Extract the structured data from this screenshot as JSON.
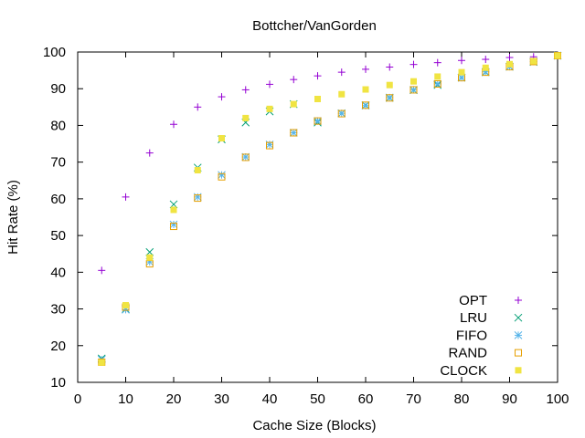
{
  "chart_data": {
    "type": "scatter",
    "title": "Bottcher/VanGorden",
    "xlabel": "Cache Size (Blocks)",
    "ylabel": "Hit Rate (%)",
    "xlim": [
      0,
      100
    ],
    "ylim": [
      10,
      100
    ],
    "xticks": [
      "0",
      "10",
      "20",
      "30",
      "40",
      "50",
      "60",
      "70",
      "80",
      "90",
      "100"
    ],
    "yticks": [
      "10",
      "20",
      "30",
      "40",
      "50",
      "60",
      "70",
      "80",
      "90",
      "100"
    ],
    "grid": false,
    "legend_position": "bottom-right",
    "x": [
      5,
      10,
      15,
      20,
      25,
      30,
      35,
      40,
      45,
      50,
      55,
      60,
      65,
      70,
      75,
      80,
      85,
      90,
      95,
      100
    ],
    "series": [
      {
        "name": "OPT",
        "marker": "plus",
        "color": "#9400d3",
        "values": [
          40.5,
          60.5,
          72.5,
          80.3,
          85.0,
          87.8,
          89.7,
          91.2,
          92.5,
          93.5,
          94.5,
          95.3,
          95.9,
          96.6,
          97.1,
          97.7,
          98.0,
          98.5,
          98.7,
          99.0
        ]
      },
      {
        "name": "LRU",
        "marker": "cross",
        "color": "#009e73",
        "values": [
          16.5,
          30.0,
          45.5,
          58.5,
          68.5,
          76.2,
          80.8,
          83.8,
          85.8,
          80.8,
          83.3,
          85.5,
          87.5,
          89.6,
          91.0,
          93.0,
          94.5,
          96.0,
          97.3,
          99.0
        ]
      },
      {
        "name": "FIFO",
        "marker": "asterisk",
        "color": "#56b4e9",
        "values": [
          16.2,
          29.8,
          42.8,
          53.0,
          60.5,
          66.5,
          71.4,
          74.8,
          78.0,
          81.2,
          83.3,
          85.4,
          87.6,
          89.7,
          91.3,
          93.0,
          94.6,
          96.0,
          97.4,
          99.0
        ]
      },
      {
        "name": "RAND",
        "marker": "open-square",
        "color": "#e69f00",
        "values": [
          15.5,
          30.5,
          42.3,
          52.5,
          60.2,
          66.0,
          71.3,
          74.5,
          78.0,
          81.2,
          83.2,
          85.5,
          87.5,
          89.7,
          91.3,
          93.0,
          94.5,
          96.0,
          97.4,
          99.0
        ]
      },
      {
        "name": "CLOCK",
        "marker": "filled-square",
        "color": "#f0e442",
        "values": [
          15.4,
          31.0,
          44.0,
          57.0,
          67.8,
          76.5,
          82.0,
          84.5,
          85.8,
          87.2,
          88.5,
          89.8,
          91.0,
          92.0,
          93.3,
          94.5,
          95.7,
          96.7,
          97.5,
          99.0
        ]
      }
    ]
  }
}
